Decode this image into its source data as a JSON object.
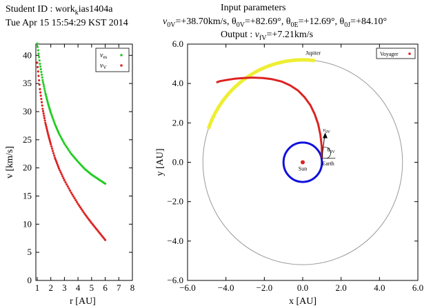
{
  "header": {
    "student_id": "Student ID : work",
    "student_id_sub": "k",
    "student_id_rest": "ias1404a",
    "timestamp": "Tue Apr 15 15:54:29 KST 2014",
    "input_title": "Input parameters",
    "v0V": "=+38.70km/s,",
    "theta0V": "=+82.69°,",
    "theta0E": "=+12.69°,",
    "theta0J": "=+84.10°",
    "output_prefix": "Output : ",
    "vfV": "=+7.21km/s"
  },
  "chart_data": [
    {
      "type": "scatter",
      "title": "",
      "xlabel": "r [AU]",
      "ylabel": "v [km/s]",
      "xlim": [
        0.9,
        8
      ],
      "ylim": [
        0,
        42
      ],
      "xticks": [
        1,
        2,
        3,
        4,
        5,
        6,
        7,
        8
      ],
      "yticks": [
        0,
        5,
        10,
        15,
        20,
        25,
        30,
        35,
        40
      ],
      "legend": [
        "v_es",
        "v_V"
      ],
      "series": [
        {
          "name": "v_es",
          "color": "#22cc22",
          "x": [
            1.0,
            1.2,
            1.4,
            1.6,
            1.8,
            2.0,
            2.3,
            2.6,
            3.0,
            3.5,
            4.0,
            4.5,
            5.0,
            5.5,
            6.0
          ],
          "y": [
            42.1,
            38.5,
            35.6,
            33.3,
            31.4,
            29.8,
            27.8,
            26.1,
            24.3,
            22.5,
            21.1,
            19.8,
            18.8,
            18.0,
            17.2
          ]
        },
        {
          "name": "v_V",
          "color": "#dd2222",
          "x": [
            1.0,
            1.2,
            1.4,
            1.6,
            1.8,
            2.0,
            2.3,
            2.6,
            3.0,
            3.5,
            4.0,
            4.5,
            5.0,
            5.5,
            6.0
          ],
          "y": [
            38.7,
            34.0,
            30.5,
            28.0,
            26.0,
            24.2,
            21.8,
            19.9,
            17.8,
            15.6,
            13.6,
            11.8,
            10.2,
            8.7,
            7.2
          ]
        }
      ]
    },
    {
      "type": "line",
      "title": "",
      "xlabel": "x [AU]",
      "ylabel": "y [AU]",
      "xlim": [
        -6,
        6
      ],
      "ylim": [
        -6,
        6
      ],
      "xticks": [
        "−6.0",
        "−4.0",
        "−2.0",
        "0.0",
        "2.0",
        "4.0",
        "6.0"
      ],
      "yticks": [
        "−6.0",
        "−4.0",
        "−2.0",
        "0.0",
        "2.0",
        "4.0",
        "6.0"
      ],
      "legend": [
        "Voyager"
      ],
      "earth_orbit_radius": 1.0,
      "jupiter_orbit_radius": 5.2,
      "voyager_path": {
        "x": [
          1.0,
          0.99,
          0.92,
          0.8,
          0.62,
          0.4,
          0.1,
          -0.25,
          -0.65,
          -1.1,
          -1.6,
          -2.1,
          -2.6,
          -3.1,
          -3.55,
          -3.95,
          -4.3,
          -4.5
        ],
        "y": [
          0.22,
          0.8,
          1.4,
          1.95,
          2.45,
          2.9,
          3.3,
          3.65,
          3.9,
          4.1,
          4.22,
          4.28,
          4.3,
          4.28,
          4.24,
          4.18,
          4.12,
          4.05
        ]
      },
      "jupiter_arc_deg": [
        83,
        161
      ],
      "labels": {
        "sun": "Sun",
        "earth": "Earth",
        "jupiter": "Jupiter",
        "v0V": "v",
        "v0V_sub": "0V",
        "theta0V": "θ",
        "theta0V_sub": "0V"
      },
      "colors": {
        "earth": "#1010dd",
        "jupiter_orbit": "#999999",
        "jupiter_arc": "#eeee33",
        "voyager": "#dd2222",
        "sun": "#dd2222"
      }
    }
  ]
}
